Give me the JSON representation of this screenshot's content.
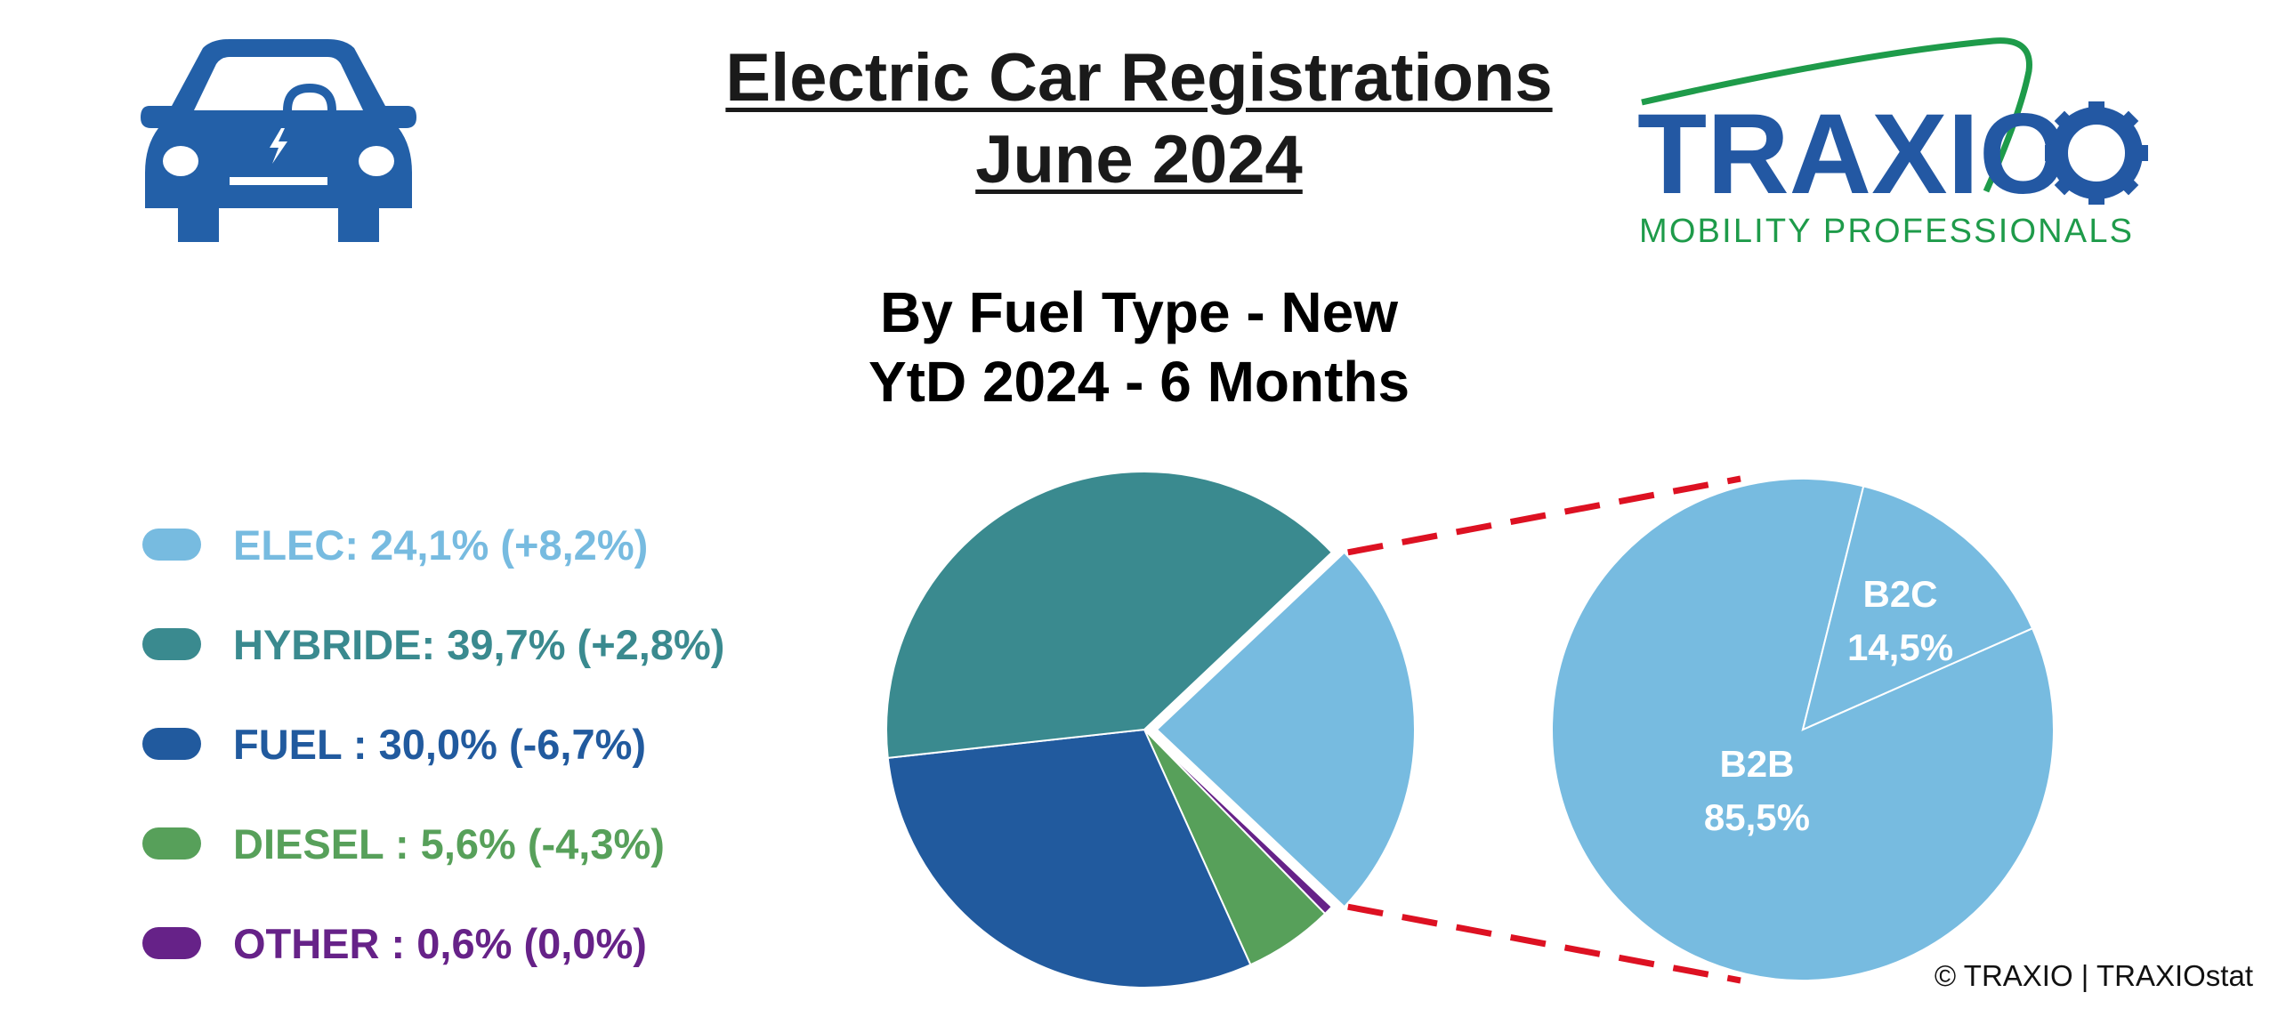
{
  "header": {
    "title_line1": "Electric Car Registrations",
    "title_line2": "June 2024",
    "subtitle_line1": "By Fuel Type - New",
    "subtitle_line2": "YtD 2024 - 6 Months"
  },
  "logo": {
    "brand": "TRAXIO",
    "tagline": "MOBILITY PROFESSIONALS",
    "brand_color": "#2358a3",
    "accent_color": "#1e9b4a"
  },
  "icons": {
    "car": "electric-car-icon"
  },
  "legend": [
    {
      "label": "ELEC: 24,1% (+8,2%)",
      "color": "#77bbe0"
    },
    {
      "label": "HYBRIDE: 39,7% (+2,8%)",
      "color": "#3a8a8f"
    },
    {
      "label": "FUEL : 30,0% (-6,7%)",
      "color": "#215a9e"
    },
    {
      "label": "DIESEL : 5,6% (-4,3%)",
      "color": "#57a05a"
    },
    {
      "label": "OTHER : 0,6% (0,0%)",
      "color": "#662288"
    }
  ],
  "copyright": "© TRAXIO | TRAXIOstat",
  "chart_data": [
    {
      "type": "pie",
      "title": "",
      "slices": [
        {
          "name": "ELEC",
          "value": 24.1,
          "color": "#77bbe0",
          "exploded": true
        },
        {
          "name": "OTHER",
          "value": 0.6,
          "color": "#662288"
        },
        {
          "name": "DIESEL",
          "value": 5.6,
          "color": "#57a05a"
        },
        {
          "name": "FUEL",
          "value": 30.0,
          "color": "#215a9e"
        },
        {
          "name": "HYBRIDE",
          "value": 39.7,
          "color": "#3a8a8f"
        }
      ]
    },
    {
      "type": "pie",
      "title": "",
      "breakdown_of": "ELEC",
      "slices": [
        {
          "name": "B2C",
          "value": 14.5,
          "label": "14,5%",
          "color": "#77bbe0"
        },
        {
          "name": "B2B",
          "value": 85.5,
          "label": "85,5%",
          "color": "#77bbe0"
        }
      ],
      "connector_color": "#dd1122"
    }
  ]
}
